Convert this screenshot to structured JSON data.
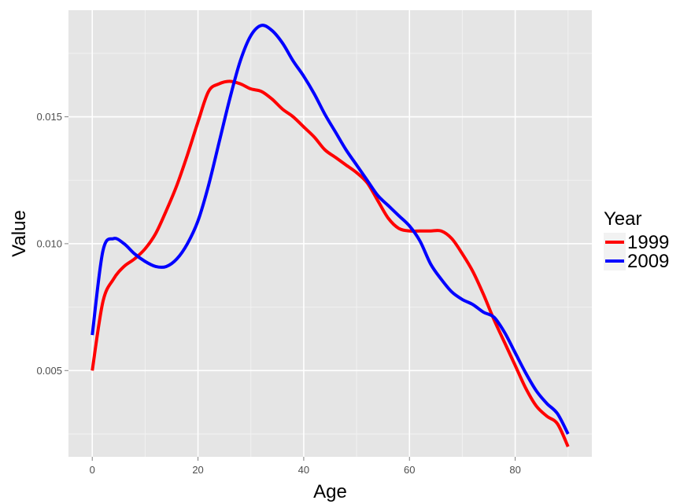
{
  "chart_data": {
    "type": "line",
    "xlabel": "Age",
    "ylabel": "Value",
    "xlim": [
      -4.5,
      94.5
    ],
    "ylim": [
      0.0016,
      0.0192
    ],
    "x_ticks": [
      0,
      20,
      40,
      60,
      80
    ],
    "x_tick_labels": [
      "0",
      "20",
      "40",
      "60",
      "80"
    ],
    "y_ticks": [
      0.005,
      0.01,
      0.015
    ],
    "y_tick_labels": [
      "0.005",
      "0.010",
      "0.015"
    ],
    "grid": true,
    "legend": {
      "title": "Year",
      "position": "right"
    },
    "series": [
      {
        "name": "1999",
        "color": "#ff0000",
        "x": [
          0,
          2,
          4,
          6,
          8,
          10,
          12,
          14,
          16,
          18,
          20,
          22,
          24,
          26,
          28,
          30,
          32,
          34,
          36,
          38,
          40,
          42,
          44,
          46,
          48,
          50,
          52,
          54,
          56,
          58,
          60,
          62,
          64,
          66,
          68,
          70,
          72,
          74,
          76,
          78,
          80,
          82,
          84,
          86,
          88,
          90
        ],
        "y": [
          0.005,
          0.0077,
          0.0086,
          0.0091,
          0.0094,
          0.0098,
          0.0104,
          0.0113,
          0.0123,
          0.0135,
          0.0148,
          0.016,
          0.0163,
          0.0164,
          0.0163,
          0.0161,
          0.016,
          0.0157,
          0.0153,
          0.015,
          0.0146,
          0.0142,
          0.0137,
          0.0134,
          0.0131,
          0.0128,
          0.0124,
          0.0117,
          0.011,
          0.0106,
          0.0105,
          0.0105,
          0.0105,
          0.0105,
          0.0102,
          0.0096,
          0.0089,
          0.008,
          0.007,
          0.0061,
          0.0052,
          0.0043,
          0.0036,
          0.0032,
          0.0029,
          0.002
        ]
      },
      {
        "name": "2009",
        "color": "#0000ff",
        "x": [
          0,
          2,
          4,
          6,
          8,
          10,
          12,
          14,
          16,
          18,
          20,
          22,
          24,
          26,
          28,
          30,
          32,
          34,
          36,
          38,
          40,
          42,
          44,
          46,
          48,
          50,
          52,
          54,
          56,
          58,
          60,
          62,
          64,
          66,
          68,
          70,
          72,
          74,
          76,
          78,
          80,
          82,
          84,
          86,
          88,
          90
        ],
        "y": [
          0.0064,
          0.0097,
          0.0102,
          0.01,
          0.0096,
          0.0093,
          0.0091,
          0.0091,
          0.0094,
          0.01,
          0.0109,
          0.0123,
          0.014,
          0.0157,
          0.0172,
          0.0182,
          0.0186,
          0.0184,
          0.0179,
          0.0172,
          0.0166,
          0.0159,
          0.0151,
          0.0144,
          0.0137,
          0.0131,
          0.0125,
          0.0119,
          0.0115,
          0.0111,
          0.0107,
          0.0101,
          0.0092,
          0.0086,
          0.0081,
          0.0078,
          0.0076,
          0.0073,
          0.0071,
          0.0065,
          0.0057,
          0.0049,
          0.0042,
          0.0037,
          0.0033,
          0.0025
        ]
      }
    ]
  }
}
